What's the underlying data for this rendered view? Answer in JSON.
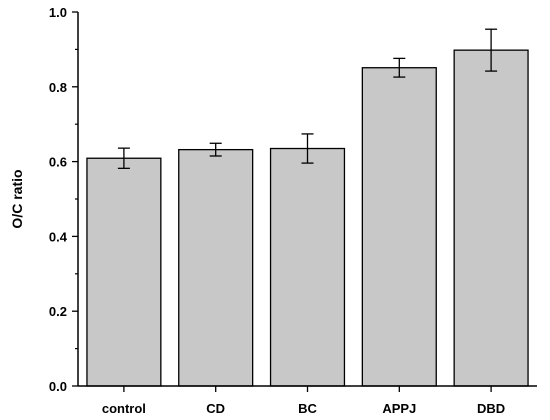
{
  "chart_data": {
    "type": "bar",
    "title": "",
    "xlabel": "",
    "ylabel": "O/C ratio",
    "categories": [
      "control",
      "CD",
      "BC",
      "APPJ",
      "DBD"
    ],
    "values": [
      0.609,
      0.632,
      0.635,
      0.851,
      0.898
    ],
    "errors": [
      0.027,
      0.017,
      0.039,
      0.025,
      0.056
    ],
    "ylim": [
      0.0,
      1.0
    ],
    "yticks": [
      "0.0",
      "0.2",
      "0.4",
      "0.6",
      "0.8",
      "1.0"
    ],
    "grid": false,
    "legend": "none"
  },
  "colors": {
    "bar_fill": "#c8c8c8",
    "bar_stroke": "#000000",
    "axis": "#000000",
    "error_bar": "#000000"
  }
}
